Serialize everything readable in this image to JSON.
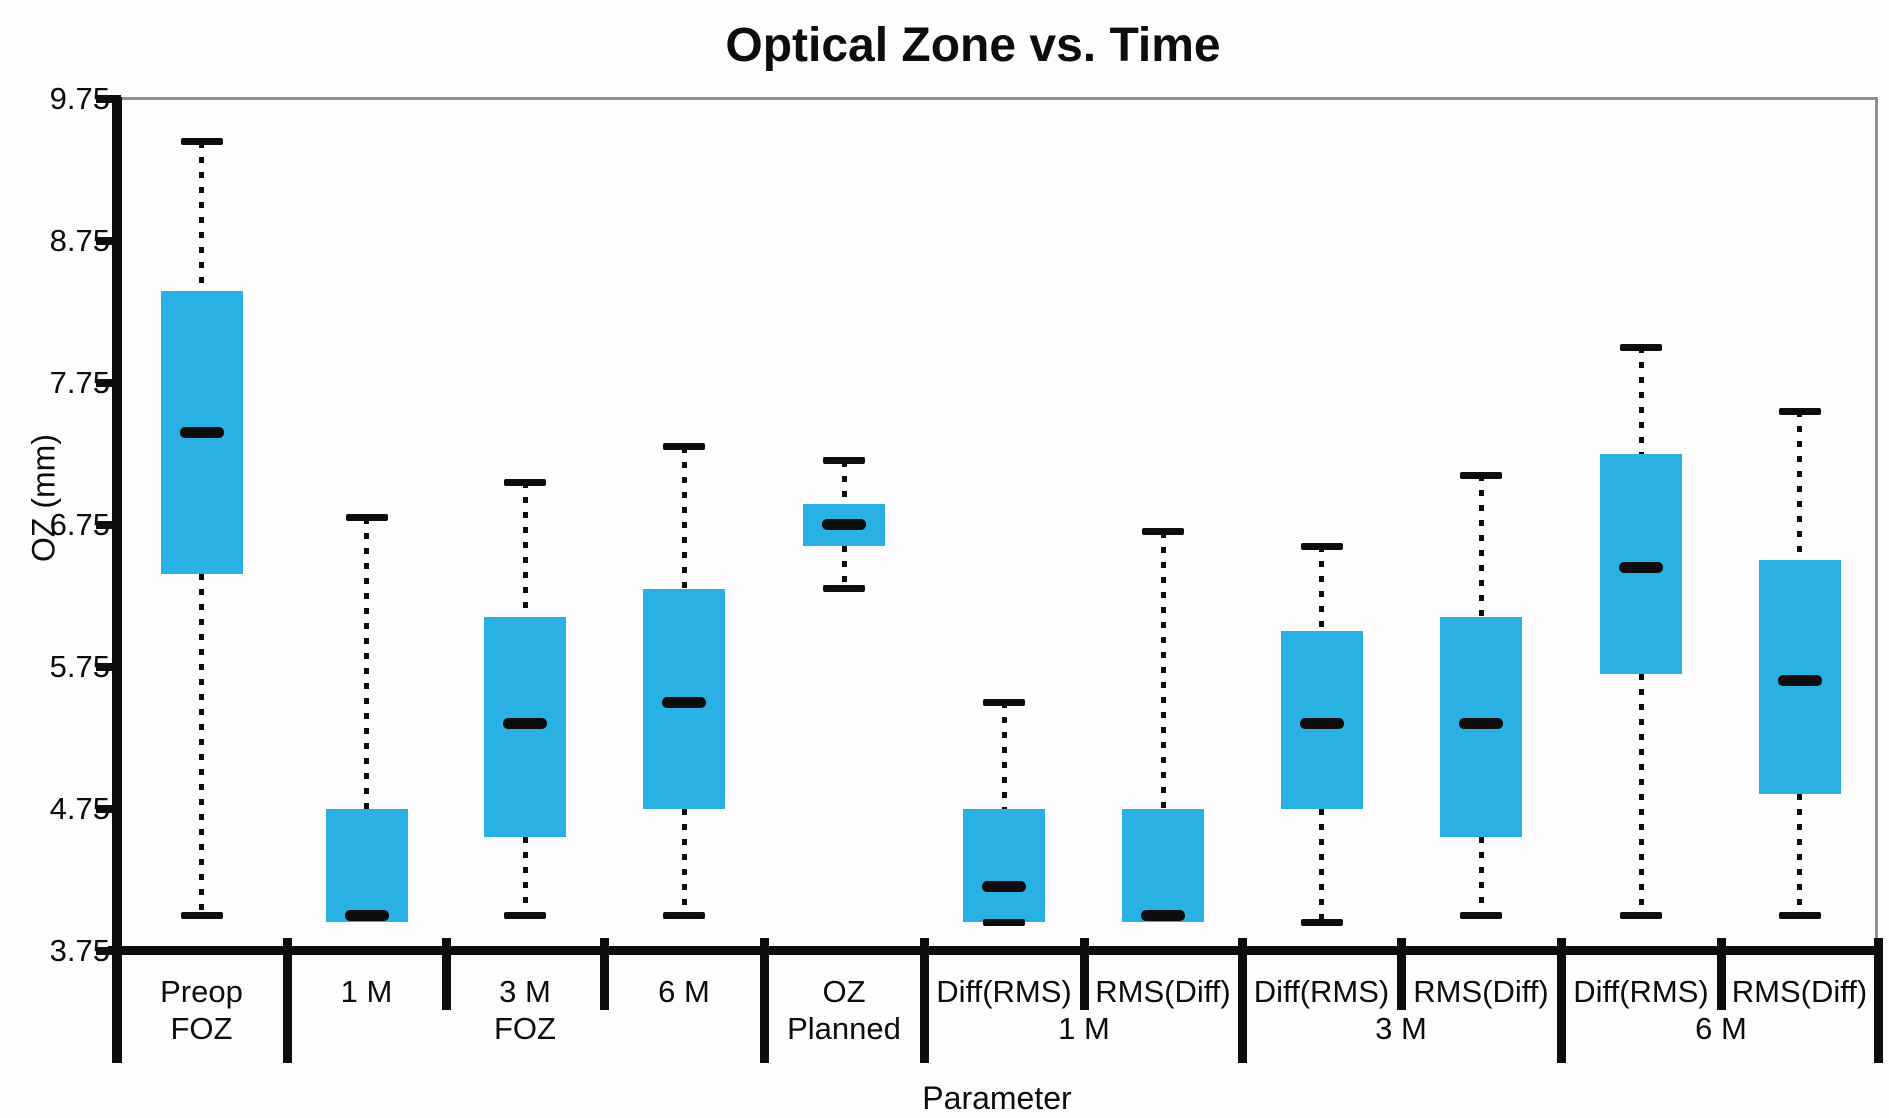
{
  "title": "Optical Zone vs. Time",
  "chart_data": {
    "type": "box",
    "title": "Optical Zone vs. Time",
    "xlabel": "Parameter",
    "ylabel": "OZ (mm)",
    "ylim": [
      3.75,
      9.75
    ],
    "yticks": [
      9.75,
      8.75,
      7.75,
      6.75,
      5.75,
      4.75,
      3.75
    ],
    "ytick_labels": [
      "9.75",
      "8.75",
      "7.75",
      "6.75",
      "5.75",
      "4.75",
      "3.75"
    ],
    "grid": "off",
    "legend": "none",
    "x_cells": [
      {
        "line1": "Preop",
        "line2": "FOZ"
      },
      {
        "line1": "1 M",
        "line2": ""
      },
      {
        "line1": "3 M",
        "line2": "FOZ"
      },
      {
        "line1": "6 M",
        "line2": ""
      },
      {
        "line1": "OZ",
        "line2": "Planned"
      },
      {
        "line1": "Diff(RMS)",
        "line2": ""
      },
      {
        "line1": "RMS(Diff)",
        "line2": ""
      },
      {
        "line1": "Diff(RMS)",
        "line2": ""
      },
      {
        "line1": "RMS(Diff)",
        "line2": ""
      },
      {
        "line1": "Diff(RMS)",
        "line2": ""
      },
      {
        "line1": "RMS(Diff)",
        "line2": ""
      }
    ],
    "pair_labels": [
      {
        "text": "1 M",
        "at_boundary": 6
      },
      {
        "text": "3 M",
        "at_boundary": 8
      },
      {
        "text": "6 M",
        "at_boundary": 10
      }
    ],
    "tall_separators_after_cells": [
      0,
      3,
      4,
      6,
      8,
      10
    ],
    "short_separators_after_cells": [
      1,
      2,
      5,
      7,
      9
    ],
    "boxes": [
      {
        "label": "Preop FOZ",
        "min": 4.0,
        "q1": 6.4,
        "median": 7.4,
        "q3": 8.4,
        "max": 9.45,
        "top_cap": true,
        "bottom_cap": true
      },
      {
        "label": "1 M FOZ",
        "min": 3.95,
        "q1": 3.95,
        "median": 4.0,
        "q3": 4.75,
        "max": 6.8,
        "top_cap": true,
        "bottom_cap": false
      },
      {
        "label": "3 M FOZ",
        "min": 4.0,
        "q1": 4.55,
        "median": 5.35,
        "q3": 6.1,
        "max": 7.05,
        "top_cap": true,
        "bottom_cap": true
      },
      {
        "label": "6 M FOZ",
        "min": 4.0,
        "q1": 4.75,
        "median": 5.5,
        "q3": 6.3,
        "max": 7.3,
        "top_cap": true,
        "bottom_cap": true
      },
      {
        "label": "OZ Planned",
        "min": 6.3,
        "q1": 6.6,
        "median": 6.75,
        "q3": 6.9,
        "max": 7.2,
        "top_cap": true,
        "bottom_cap": true
      },
      {
        "label": "Diff(RMS) 1 M",
        "min": 3.95,
        "q1": 3.95,
        "median": 4.2,
        "q3": 4.75,
        "max": 5.5,
        "top_cap": true,
        "bottom_cap": true
      },
      {
        "label": "RMS(Diff) 1 M",
        "min": 3.95,
        "q1": 3.95,
        "median": 4.0,
        "q3": 4.75,
        "max": 6.7,
        "top_cap": true,
        "bottom_cap": false
      },
      {
        "label": "Diff(RMS) 3 M",
        "min": 3.95,
        "q1": 4.75,
        "median": 5.35,
        "q3": 6.0,
        "max": 6.6,
        "top_cap": true,
        "bottom_cap": true
      },
      {
        "label": "RMS(Diff) 3 M",
        "min": 4.0,
        "q1": 4.55,
        "median": 5.35,
        "q3": 6.1,
        "max": 7.1,
        "top_cap": true,
        "bottom_cap": true
      },
      {
        "label": "Diff(RMS) 6 M",
        "min": 4.0,
        "q1": 5.7,
        "median": 6.45,
        "q3": 7.25,
        "max": 8.0,
        "top_cap": true,
        "bottom_cap": true
      },
      {
        "label": "RMS(Diff) 6 M",
        "min": 4.0,
        "q1": 4.85,
        "median": 5.65,
        "q3": 6.5,
        "max": 7.55,
        "top_cap": true,
        "bottom_cap": true
      }
    ],
    "colors": {
      "box": "#29B1E4",
      "line": "#0d0d0d",
      "frame": "#909090"
    }
  }
}
